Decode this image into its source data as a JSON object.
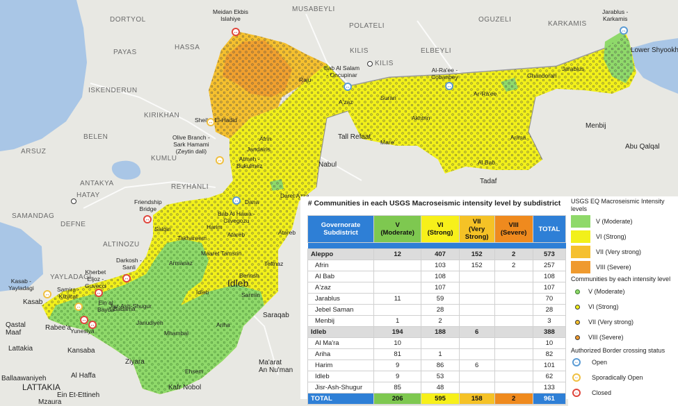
{
  "colors": {
    "moderate": "#8fd96a",
    "strong": "#f2f01a",
    "very_strong": "#f5c02e",
    "severe": "#ef9a2e",
    "water": "#a9c6e6",
    "land": "#e8e8e3",
    "table_header": "#2e7fd6"
  },
  "map_labels": {
    "dortyol": "DORTYOL",
    "payas": "PAYAS",
    "hassa": "HASSA",
    "iskenderun": "ISKENDERUN",
    "kirikhan": "KIRIKHAN",
    "belen": "BELEN",
    "kumlu": "KUMLU",
    "arsuz": "ARSUZ",
    "antakya": "ANTAKYA",
    "hatay": "HATAY",
    "reyhanli": "REYHANLI",
    "samandag": "SAMANDAG",
    "defne": "DEFNE",
    "altinozu": "ALTINOZU",
    "yayladagi": "YAYLADAGI",
    "musabeyli": "MUSABEYLI",
    "polateli": "POLATELI",
    "kilis_upper": "KILIS",
    "kilis": "KILIS",
    "oguzeli": "OGUZELI",
    "elbeyli": "ELBEYLI",
    "karkamis": "KARKAMIS",
    "lower_shyookh": "Lower Shyookh",
    "menbij_outer": "Menbij",
    "abu_qalqal": "Abu Qalqal",
    "tall_refaat": "Tall Refaat",
    "nabul": "Nabul",
    "tadaf": "Tadaf",
    "idleb": "Idleb",
    "saraqab": "Saraqab",
    "maarat_annuman": "Ma'arat\nAn Nu'man",
    "kafr_nobol": "Kafr Nobol",
    "qastal_maaf": "Qastal\nMaaf",
    "lattakia": "Lattakia",
    "lattakia_caps": "LATTAKIA",
    "kansaba": "Kansaba",
    "al_haffa": "Al Haffa",
    "ballaawaniyeh": "Ballaawaniyeh",
    "ein_et_tineh": "Ein Et-Ettineh",
    "mzaura": "Mzaura",
    "rabee": "Rabee'a",
    "yunesiya": "Yunesiya",
    "kasab": "Kasab",
    "ziyara": "Ziyara",
    "mudiq": "Ariha",
    "afrin": "Afrin",
    "azaz": "A'zaz",
    "al_bab": "Al Bab",
    "jarablus": "Jarablus",
    "ariha": "Ariha",
    "harim": "Harim",
    "jisr": "Jisr-Ash-Shugur",
    "jebel_saman": "Daret Azza",
    "atareb": "Atareb",
    "maaret_tamsrin": "Maaret Tamsrin",
    "sarmin": "Sarmin",
    "bennsh": "Bennsh",
    "teftnaz": "Teftnaz",
    "dana": "Dana",
    "salqin": "Salqin",
    "armanaz": "Armanaz",
    "takhareem": "Takhareem",
    "sheikh_elhadid": "Sheikh El-Hadid",
    "jandairis": "Jandairis",
    "mare": "Mare'",
    "suran": "Suran",
    "akhtrin": "Akhtrin",
    "raee": "Ar-Ra'ee",
    "arima": "Arima",
    "ghandorah": "Ghandorah",
    "badama": "Badama",
    "janudiyeh": "Janudiyeh",
    "ehsem": "Ehsem",
    "mhambal": "Mhambal",
    "armanaz2": "Darkush",
    "kafr_takharim": "Qourqeena",
    "ain_al_bayda": "Ein al Bayda",
    "azaz_area": "Sawran",
    "qourqeena": "Haritan",
    "afrin_area": "Ma'btali",
    "rajo": "Raju",
    "bulbul": "Bulbul",
    "sharan": "Sharan",
    "nabul2": "Nobol",
    "madiq": "Madiq"
  },
  "crossings": {
    "meidan": "Meidan Ekbis\nIslahiye",
    "bab_alsalam": "Bab Al Salam\n- Oncupinar",
    "alraee": "Al-Ra'ee -\nCobanbey",
    "jarablus": "Jarablus -\nKarkamis",
    "olive_branch": "Olive Branch -\nSark Hamami\n(Zeytin dali)",
    "atmeh": "Atmeh -\nBukulmez",
    "bab_alhawa": "Bab Al Hawa -\nCilvegozu",
    "friendship": "Friendship\nBridge",
    "darkosh": "Darkosh -\nSanli",
    "kherbet": "Kherbet\nEljoz -\nGuvecci",
    "samira": "Samira -\nKizilcat",
    "kasab": "Kasab -\nYayladagi",
    "ein_bayda": "Ein al\nBayda",
    "yunesiya": "Yunesiya"
  },
  "table": {
    "title": "# Communities in each USGS Macroseismic intensity level by subdistrict",
    "headers": {
      "gov": "Governorate\nSubdistrict",
      "v": "V\n(Moderate)",
      "vi": "VI\n(Strong)",
      "vii": "VII\n(Very\nStrong)",
      "viii": "VIII\n(Severe)",
      "total": "TOTAL"
    },
    "rows": [
      {
        "name": "Aleppo",
        "gov": true,
        "v": "12",
        "vi": "407",
        "vii": "152",
        "viii": "2",
        "total": "573"
      },
      {
        "name": "Afrin",
        "v": "",
        "vi": "103",
        "vii": "152",
        "viii": "2",
        "total": "257"
      },
      {
        "name": "Al Bab",
        "v": "",
        "vi": "108",
        "vii": "",
        "viii": "",
        "total": "108"
      },
      {
        "name": "A'zaz",
        "v": "",
        "vi": "107",
        "vii": "",
        "viii": "",
        "total": "107"
      },
      {
        "name": "Jarablus",
        "v": "11",
        "vi": "59",
        "vii": "",
        "viii": "",
        "total": "70"
      },
      {
        "name": "Jebel Saman",
        "v": "",
        "vi": "28",
        "vii": "",
        "viii": "",
        "total": "28"
      },
      {
        "name": "Menbij",
        "v": "1",
        "vi": "2",
        "vii": "",
        "viii": "",
        "total": "3"
      },
      {
        "name": "Idleb",
        "gov": true,
        "v": "194",
        "vi": "188",
        "vii": "6",
        "viii": "",
        "total": "388"
      },
      {
        "name": "Al Ma'ra",
        "v": "10",
        "vi": "",
        "vii": "",
        "viii": "",
        "total": "10"
      },
      {
        "name": "Ariha",
        "v": "81",
        "vi": "1",
        "vii": "",
        "viii": "",
        "total": "82"
      },
      {
        "name": "Harim",
        "v": "9",
        "vi": "86",
        "vii": "6",
        "viii": "",
        "total": "101"
      },
      {
        "name": "Idleb",
        "v": "9",
        "vi": "53",
        "vii": "",
        "viii": "",
        "total": "62"
      },
      {
        "name": "Jisr-Ash-Shugur",
        "v": "85",
        "vi": "48",
        "vii": "",
        "viii": "",
        "total": "133"
      }
    ],
    "total": {
      "name": "TOTAL",
      "v": "206",
      "vi": "595",
      "vii": "158",
      "viii": "2",
      "total": "961"
    }
  },
  "legend": {
    "title": "USGS EQ Macroseismic Intensity levels",
    "levels": [
      "V (Moderate)",
      "VI (Strong)",
      "VII (Very strong)",
      "VIII (Severe)"
    ],
    "points_title": "Communities by each intensity level",
    "points": [
      "V (Moderate)",
      "VI (Strong)",
      "VII (Very strong)",
      "VIII (Severe)"
    ],
    "crossing_title": "Authorized Border crossing status",
    "crossings": [
      "Open",
      "Sporadically Open",
      "Closed"
    ]
  }
}
